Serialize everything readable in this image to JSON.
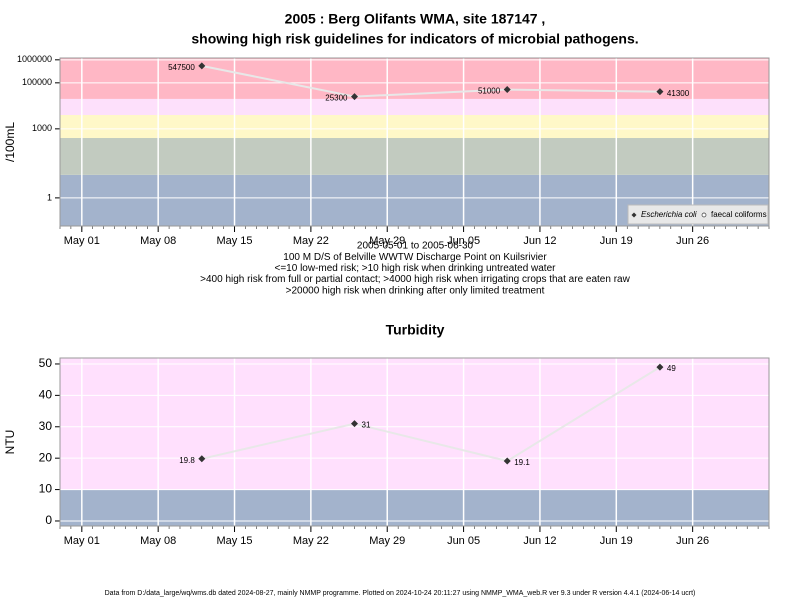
{
  "chart_data": [
    {
      "type": "line",
      "log_y": true,
      "title": [
        "2005 : Berg Olifants WMA, site 187147 ,",
        "showing high risk guidelines for indicators of microbial pathogens."
      ],
      "ylabel": "/100mL",
      "subtitle": [
        "2005-05-01 to 2005-06-30",
        "100 M D/S of Belville WWTW Discharge Point on Kuilsrivier",
        "<=10 low-med risk; >10 high risk when drinking untreated water",
        ">400 high risk from full or partial contact; >4000 high risk when irrigating crops that are eaten raw",
        ">20000 high risk when drinking after only limited treatment"
      ],
      "x": [
        "2005-05-12",
        "2005-05-26",
        "2005-06-09",
        "2005-06-23"
      ],
      "series": [
        {
          "name": "Escherichia coli",
          "color": "#333333",
          "values": [
            547500,
            25300,
            51000,
            41300
          ]
        },
        {
          "name": "faecal coliforms",
          "color": "#ffffff",
          "values": [
            null,
            null,
            null,
            null
          ]
        }
      ],
      "line_color": "#e8e8e8",
      "bands": [
        {
          "from": 10,
          "color": "#a3b3cc"
        },
        {
          "from": 400,
          "color": "#c2cbc0"
        },
        {
          "from": 4000,
          "color": "#fff8c8"
        },
        {
          "from": 20000,
          "color": "#fde0fb"
        },
        {
          "from": null,
          "color": "#ffb7c5"
        }
      ],
      "xlim": [
        "2005-04-29",
        "2005-07-03"
      ],
      "xticks": [
        {
          "value": "2005-05-01",
          "label": "May 01"
        },
        {
          "value": "2005-05-08",
          "label": "May 08"
        },
        {
          "value": "2005-05-15",
          "label": "May 15"
        },
        {
          "value": "2005-05-22",
          "label": "May 22"
        },
        {
          "value": "2005-05-29",
          "label": "May 29"
        },
        {
          "value": "2005-06-05",
          "label": "Jun 05"
        },
        {
          "value": "2005-06-12",
          "label": "Jun 12"
        },
        {
          "value": "2005-06-19",
          "label": "Jun 19"
        },
        {
          "value": "2005-06-26",
          "label": "Jun 26"
        }
      ],
      "ylim": [
        0.06,
        1200000
      ],
      "yticks": [
        1,
        1000,
        100000,
        1000000
      ],
      "grid": true,
      "legend": "bottom-right"
    },
    {
      "type": "line",
      "log_y": false,
      "title": [
        "Turbidity"
      ],
      "ylabel": "NTU",
      "x": [
        "2005-05-12",
        "2005-05-26",
        "2005-06-09",
        "2005-06-23"
      ],
      "series": [
        {
          "name": "Turbidity",
          "color": "#333333",
          "values": [
            19.8,
            31,
            19.1,
            49
          ]
        }
      ],
      "line_color": "#e8e8e8",
      "bands": [
        {
          "from": 10,
          "color": "#a3b3cc"
        },
        {
          "from": null,
          "color": "#ffe0fd"
        }
      ],
      "xlim": [
        "2005-04-29",
        "2005-07-03"
      ],
      "xticks": [
        {
          "value": "2005-05-01",
          "label": "May 01"
        },
        {
          "value": "2005-05-08",
          "label": "May 08"
        },
        {
          "value": "2005-05-15",
          "label": "May 15"
        },
        {
          "value": "2005-05-22",
          "label": "May 22"
        },
        {
          "value": "2005-05-29",
          "label": "May 29"
        },
        {
          "value": "2005-06-05",
          "label": "Jun 05"
        },
        {
          "value": "2005-06-12",
          "label": "Jun 12"
        },
        {
          "value": "2005-06-19",
          "label": "Jun 19"
        },
        {
          "value": "2005-06-26",
          "label": "Jun 26"
        }
      ],
      "ylim": [
        -1.6,
        51.9
      ],
      "yticks": [
        0,
        10,
        20,
        30,
        40,
        50
      ],
      "grid": true
    }
  ],
  "footer": "Data from D:/data_large/wq/wms.db dated 2024-08-27, mainly NMMP programme. Plotted on 2024-10-24 20:11:27 using NMMP_WMA_web.R ver 9.3 under R version 4.4.1 (2024-06-14 ucrt)"
}
